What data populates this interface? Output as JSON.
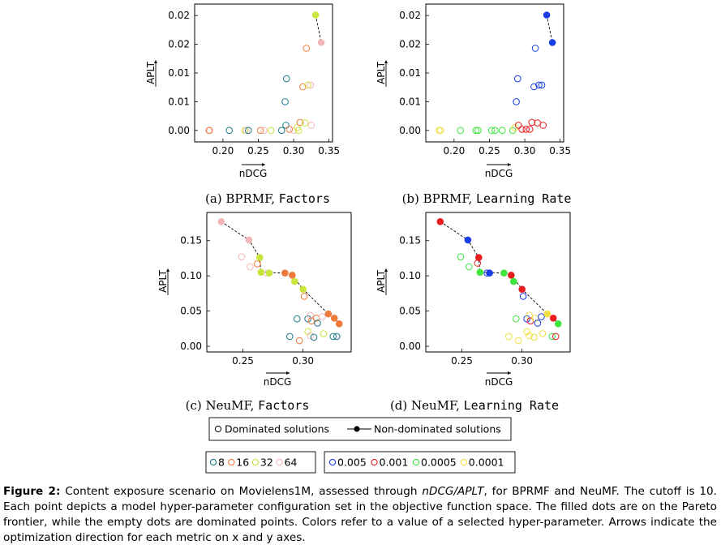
{
  "figure": {
    "label": "Figure 2:",
    "caption_parts": [
      "Content exposure scenario on Movielens1M, assessed through ",
      "nDCG/APLT",
      ", for BPRMF and NeuMF. The cutoff is 10. Each point depicts a model hyper-parameter configuration set in the objective function space. The filled dots are on the Pareto frontier, while the empty dots are dominated points. Colors refer to a value of a selected hyper-parameter. Arrows indicate the optimization direction for each metric on x and y axes."
    ]
  },
  "legends": {
    "dominance": [
      "Dominated solutions",
      "Non-dominated solutions"
    ],
    "factors": [
      {
        "label": "8",
        "color": "#1f7a8c"
      },
      {
        "label": "16",
        "color": "#f07a3a"
      },
      {
        "label": "32",
        "color": "#c8e63c"
      },
      {
        "label": "64",
        "color": "#f4b8b8"
      }
    ],
    "learning_rate": [
      {
        "label": "0.005",
        "color": "#1a3ee6"
      },
      {
        "label": "0.001",
        "color": "#e81e1e"
      },
      {
        "label": "0.0005",
        "color": "#3ee63e"
      },
      {
        "label": "0.0001",
        "color": "#f0e040"
      }
    ]
  },
  "chart_data": [
    {
      "type": "scatter",
      "subcaption_prefix": "(a) BPRMF, ",
      "subcaption_param": "Factors",
      "xlabel": "nDCG",
      "ylabel": "APLT",
      "xlim": [
        0.16,
        0.355
      ],
      "ylim": [
        -0.002,
        0.022
      ],
      "xticks": [
        0.2,
        0.25,
        0.3,
        0.35
      ],
      "xticklabels": [
        "0.20",
        "0.25",
        "0.30",
        "0.35"
      ],
      "yticks": [
        0,
        0.005,
        0.01,
        0.015,
        0.02
      ],
      "yticklabels": [
        "0.00",
        "0.01",
        "0.01",
        "0.02",
        "0.02"
      ],
      "grid": false,
      "frontier": [
        [
          0.331,
          0.0201
        ],
        [
          0.339,
          0.0153
        ]
      ],
      "points": [
        {
          "x": 0.18,
          "y": 0.0,
          "c": "#f4b8b8",
          "f": 0
        },
        {
          "x": 0.181,
          "y": 0.0,
          "c": "#f07a3a",
          "f": 0
        },
        {
          "x": 0.209,
          "y": 0.0,
          "c": "#1f7a8c",
          "f": 0
        },
        {
          "x": 0.231,
          "y": 0.0,
          "c": "#c8e63c",
          "f": 0
        },
        {
          "x": 0.233,
          "y": 0.0,
          "c": "#f4b8b8",
          "f": 0
        },
        {
          "x": 0.236,
          "y": 0.0,
          "c": "#1f7a8c",
          "f": 0
        },
        {
          "x": 0.253,
          "y": 0.0,
          "c": "#f07a3a",
          "f": 0
        },
        {
          "x": 0.258,
          "y": 0.0,
          "c": "#f4b8b8",
          "f": 0
        },
        {
          "x": 0.268,
          "y": 0.0,
          "c": "#c8e63c",
          "f": 0
        },
        {
          "x": 0.283,
          "y": 0.0,
          "c": "#1f7a8c",
          "f": 0
        },
        {
          "x": 0.289,
          "y": 0.0009,
          "c": "#1f7a8c",
          "f": 0
        },
        {
          "x": 0.294,
          "y": 0.0002,
          "c": "#f07a3a",
          "f": 0
        },
        {
          "x": 0.3,
          "y": 0.0,
          "c": "#f4b8b8",
          "f": 0
        },
        {
          "x": 0.305,
          "y": 0.0005,
          "c": "#c8e63c",
          "f": 0
        },
        {
          "x": 0.307,
          "y": 0.0,
          "c": "#c8e63c",
          "f": 0
        },
        {
          "x": 0.309,
          "y": 0.0014,
          "c": "#f07a3a",
          "f": 0
        },
        {
          "x": 0.316,
          "y": 0.0013,
          "c": "#c8e63c",
          "f": 0
        },
        {
          "x": 0.325,
          "y": 0.0009,
          "c": "#f4b8b8",
          "f": 0
        },
        {
          "x": 0.288,
          "y": 0.005,
          "c": "#1f7a8c",
          "f": 0
        },
        {
          "x": 0.29,
          "y": 0.009,
          "c": "#1f7a8c",
          "f": 0
        },
        {
          "x": 0.313,
          "y": 0.0076,
          "c": "#f07a3a",
          "f": 0
        },
        {
          "x": 0.32,
          "y": 0.0079,
          "c": "#c8e63c",
          "f": 0
        },
        {
          "x": 0.324,
          "y": 0.0079,
          "c": "#f4b8b8",
          "f": 0
        },
        {
          "x": 0.318,
          "y": 0.0143,
          "c": "#f07a3a",
          "f": 0
        },
        {
          "x": 0.331,
          "y": 0.0201,
          "c": "#c8e63c",
          "f": 1
        },
        {
          "x": 0.339,
          "y": 0.0153,
          "c": "#f4b8b8",
          "f": 1
        }
      ]
    },
    {
      "type": "scatter",
      "subcaption_prefix": "(b) BPRMF, ",
      "subcaption_param": "Learning Rate",
      "xlabel": "nDCG",
      "ylabel": "APLT",
      "xlim": [
        0.16,
        0.355
      ],
      "ylim": [
        -0.002,
        0.022
      ],
      "xticks": [
        0.2,
        0.25,
        0.3,
        0.35
      ],
      "xticklabels": [
        "0.20",
        "0.25",
        "0.30",
        "0.35"
      ],
      "yticks": [
        0,
        0.005,
        0.01,
        0.015,
        0.02
      ],
      "yticklabels": [
        "0.00",
        "0.01",
        "0.01",
        "0.02",
        "0.02"
      ],
      "grid": false,
      "frontier": [
        [
          0.331,
          0.0201
        ],
        [
          0.339,
          0.0153
        ]
      ],
      "points": [
        {
          "x": 0.179,
          "y": 0.0,
          "c": "#f0e040",
          "f": 0
        },
        {
          "x": 0.181,
          "y": 0.0,
          "c": "#f0e040",
          "f": 0
        },
        {
          "x": 0.209,
          "y": 0.0,
          "c": "#3ee63e",
          "f": 0
        },
        {
          "x": 0.231,
          "y": 0.0,
          "c": "#3ee63e",
          "f": 0
        },
        {
          "x": 0.234,
          "y": 0.0,
          "c": "#3ee63e",
          "f": 0
        },
        {
          "x": 0.253,
          "y": 0.0,
          "c": "#3ee63e",
          "f": 0
        },
        {
          "x": 0.258,
          "y": 0.0,
          "c": "#3ee63e",
          "f": 0
        },
        {
          "x": 0.268,
          "y": 0.0,
          "c": "#3ee63e",
          "f": 0
        },
        {
          "x": 0.283,
          "y": 0.0,
          "c": "#3ee63e",
          "f": 0
        },
        {
          "x": 0.286,
          "y": 0.0005,
          "c": "#f0e040",
          "f": 0
        },
        {
          "x": 0.291,
          "y": 0.0009,
          "c": "#e81e1e",
          "f": 0
        },
        {
          "x": 0.296,
          "y": 0.0002,
          "c": "#e81e1e",
          "f": 0
        },
        {
          "x": 0.302,
          "y": 0.0002,
          "c": "#e81e1e",
          "f": 0
        },
        {
          "x": 0.307,
          "y": 0.0002,
          "c": "#e81e1e",
          "f": 0
        },
        {
          "x": 0.31,
          "y": 0.0014,
          "c": "#e81e1e",
          "f": 0
        },
        {
          "x": 0.318,
          "y": 0.0013,
          "c": "#e81e1e",
          "f": 0
        },
        {
          "x": 0.326,
          "y": 0.0009,
          "c": "#e81e1e",
          "f": 0
        },
        {
          "x": 0.288,
          "y": 0.005,
          "c": "#1a3ee6",
          "f": 0
        },
        {
          "x": 0.29,
          "y": 0.009,
          "c": "#1a3ee6",
          "f": 0
        },
        {
          "x": 0.313,
          "y": 0.0076,
          "c": "#1a3ee6",
          "f": 0
        },
        {
          "x": 0.32,
          "y": 0.0079,
          "c": "#1a3ee6",
          "f": 0
        },
        {
          "x": 0.324,
          "y": 0.0079,
          "c": "#1a3ee6",
          "f": 0
        },
        {
          "x": 0.315,
          "y": 0.0143,
          "c": "#1a3ee6",
          "f": 0
        },
        {
          "x": 0.331,
          "y": 0.0201,
          "c": "#1a3ee6",
          "f": 1
        },
        {
          "x": 0.339,
          "y": 0.0153,
          "c": "#1a3ee6",
          "f": 1
        }
      ]
    },
    {
      "type": "scatter",
      "subcaption_prefix": "(c) NeuMF, ",
      "subcaption_param": "Factors",
      "xlabel": "nDCG",
      "ylabel": "APLT",
      "xlim": [
        0.22,
        0.34
      ],
      "ylim": [
        -0.008,
        0.19
      ],
      "xticks": [
        0.25,
        0.3
      ],
      "xticklabels": [
        "0.25",
        "0.30"
      ],
      "yticks": [
        0,
        0.05,
        0.1,
        0.15
      ],
      "yticklabels": [
        "0.00",
        "0.05",
        "0.10",
        "0.15"
      ],
      "grid": false,
      "frontier": [
        [
          0.232,
          0.177
        ],
        [
          0.255,
          0.151
        ],
        [
          0.264,
          0.126
        ],
        [
          0.265,
          0.105
        ],
        [
          0.285,
          0.104
        ],
        [
          0.291,
          0.101
        ],
        [
          0.3,
          0.081
        ],
        [
          0.321,
          0.046
        ],
        [
          0.326,
          0.04
        ],
        [
          0.33,
          0.032
        ]
      ],
      "points": [
        {
          "x": 0.232,
          "y": 0.177,
          "c": "#f4b8b8",
          "f": 1
        },
        {
          "x": 0.255,
          "y": 0.151,
          "c": "#f4b8b8",
          "f": 1
        },
        {
          "x": 0.264,
          "y": 0.126,
          "c": "#c8e63c",
          "f": 1
        },
        {
          "x": 0.265,
          "y": 0.105,
          "c": "#c8e63c",
          "f": 1
        },
        {
          "x": 0.272,
          "y": 0.104,
          "c": "#c8e63c",
          "f": 1
        },
        {
          "x": 0.285,
          "y": 0.104,
          "c": "#f07a3a",
          "f": 1
        },
        {
          "x": 0.291,
          "y": 0.101,
          "c": "#f07a3a",
          "f": 1
        },
        {
          "x": 0.293,
          "y": 0.092,
          "c": "#c8e63c",
          "f": 1
        },
        {
          "x": 0.3,
          "y": 0.081,
          "c": "#c8e63c",
          "f": 1
        },
        {
          "x": 0.321,
          "y": 0.046,
          "c": "#f07a3a",
          "f": 1
        },
        {
          "x": 0.326,
          "y": 0.04,
          "c": "#f07a3a",
          "f": 1
        },
        {
          "x": 0.33,
          "y": 0.032,
          "c": "#f07a3a",
          "f": 1
        },
        {
          "x": 0.249,
          "y": 0.127,
          "c": "#f4b8b8",
          "f": 0
        },
        {
          "x": 0.256,
          "y": 0.113,
          "c": "#f4b8b8",
          "f": 0
        },
        {
          "x": 0.262,
          "y": 0.117,
          "c": "#f07a3a",
          "f": 0
        },
        {
          "x": 0.27,
          "y": 0.104,
          "c": "#f4b8b8",
          "f": 0
        },
        {
          "x": 0.301,
          "y": 0.071,
          "c": "#f07a3a",
          "f": 0
        },
        {
          "x": 0.295,
          "y": 0.039,
          "c": "#1f7a8c",
          "f": 0
        },
        {
          "x": 0.304,
          "y": 0.039,
          "c": "#1f7a8c",
          "f": 0
        },
        {
          "x": 0.306,
          "y": 0.044,
          "c": "#f4b8b8",
          "f": 0
        },
        {
          "x": 0.307,
          "y": 0.036,
          "c": "#f07a3a",
          "f": 0
        },
        {
          "x": 0.311,
          "y": 0.04,
          "c": "#f07a3a",
          "f": 0
        },
        {
          "x": 0.312,
          "y": 0.033,
          "c": "#1f7a8c",
          "f": 0
        },
        {
          "x": 0.316,
          "y": 0.042,
          "c": "#f4b8b8",
          "f": 0
        },
        {
          "x": 0.289,
          "y": 0.014,
          "c": "#1f7a8c",
          "f": 0
        },
        {
          "x": 0.297,
          "y": 0.008,
          "c": "#f07a3a",
          "f": 0
        },
        {
          "x": 0.304,
          "y": 0.021,
          "c": "#c8e63c",
          "f": 0
        },
        {
          "x": 0.306,
          "y": 0.015,
          "c": "#f4b8b8",
          "f": 0
        },
        {
          "x": 0.309,
          "y": 0.013,
          "c": "#1f7a8c",
          "f": 0
        },
        {
          "x": 0.317,
          "y": 0.018,
          "c": "#c8e63c",
          "f": 0
        },
        {
          "x": 0.325,
          "y": 0.014,
          "c": "#1f7a8c",
          "f": 0
        },
        {
          "x": 0.328,
          "y": 0.014,
          "c": "#1f7a8c",
          "f": 0
        }
      ]
    },
    {
      "type": "scatter",
      "subcaption_prefix": "(d) NeuMF, ",
      "subcaption_param": "Learning Rate",
      "xlabel": "nDCG",
      "ylabel": "APLT",
      "xlim": [
        0.22,
        0.34
      ],
      "ylim": [
        -0.008,
        0.19
      ],
      "xticks": [
        0.25,
        0.3
      ],
      "xticklabels": [
        "0.25",
        "0.30"
      ],
      "yticks": [
        0,
        0.05,
        0.1,
        0.15
      ],
      "yticklabels": [
        "0.00",
        "0.05",
        "0.10",
        "0.15"
      ],
      "grid": false,
      "frontier": [
        [
          0.232,
          0.177
        ],
        [
          0.255,
          0.151
        ],
        [
          0.264,
          0.126
        ],
        [
          0.265,
          0.105
        ],
        [
          0.285,
          0.104
        ],
        [
          0.291,
          0.101
        ],
        [
          0.3,
          0.081
        ],
        [
          0.321,
          0.046
        ],
        [
          0.326,
          0.04
        ],
        [
          0.33,
          0.032
        ]
      ],
      "points": [
        {
          "x": 0.232,
          "y": 0.177,
          "c": "#e81e1e",
          "f": 1
        },
        {
          "x": 0.255,
          "y": 0.151,
          "c": "#1a3ee6",
          "f": 1
        },
        {
          "x": 0.264,
          "y": 0.126,
          "c": "#e81e1e",
          "f": 1
        },
        {
          "x": 0.265,
          "y": 0.105,
          "c": "#3ee63e",
          "f": 1
        },
        {
          "x": 0.273,
          "y": 0.104,
          "c": "#1a3ee6",
          "f": 1
        },
        {
          "x": 0.285,
          "y": 0.104,
          "c": "#3ee63e",
          "f": 1
        },
        {
          "x": 0.291,
          "y": 0.101,
          "c": "#e81e1e",
          "f": 1
        },
        {
          "x": 0.293,
          "y": 0.092,
          "c": "#3ee63e",
          "f": 1
        },
        {
          "x": 0.3,
          "y": 0.081,
          "c": "#e81e1e",
          "f": 1
        },
        {
          "x": 0.321,
          "y": 0.046,
          "c": "#f0e040",
          "f": 1
        },
        {
          "x": 0.326,
          "y": 0.04,
          "c": "#e81e1e",
          "f": 1
        },
        {
          "x": 0.33,
          "y": 0.032,
          "c": "#3ee63e",
          "f": 1
        },
        {
          "x": 0.249,
          "y": 0.127,
          "c": "#3ee63e",
          "f": 0
        },
        {
          "x": 0.256,
          "y": 0.113,
          "c": "#3ee63e",
          "f": 0
        },
        {
          "x": 0.263,
          "y": 0.118,
          "c": "#e81e1e",
          "f": 0
        },
        {
          "x": 0.271,
          "y": 0.104,
          "c": "#1a3ee6",
          "f": 0
        },
        {
          "x": 0.301,
          "y": 0.071,
          "c": "#1a3ee6",
          "f": 0
        },
        {
          "x": 0.295,
          "y": 0.039,
          "c": "#3ee63e",
          "f": 0
        },
        {
          "x": 0.304,
          "y": 0.039,
          "c": "#1a3ee6",
          "f": 0
        },
        {
          "x": 0.306,
          "y": 0.044,
          "c": "#f0e040",
          "f": 0
        },
        {
          "x": 0.307,
          "y": 0.036,
          "c": "#e81e1e",
          "f": 0
        },
        {
          "x": 0.311,
          "y": 0.04,
          "c": "#f0e040",
          "f": 0
        },
        {
          "x": 0.313,
          "y": 0.033,
          "c": "#1a3ee6",
          "f": 0
        },
        {
          "x": 0.316,
          "y": 0.042,
          "c": "#1a3ee6",
          "f": 0
        },
        {
          "x": 0.289,
          "y": 0.014,
          "c": "#f0e040",
          "f": 0
        },
        {
          "x": 0.297,
          "y": 0.008,
          "c": "#f0e040",
          "f": 0
        },
        {
          "x": 0.304,
          "y": 0.021,
          "c": "#f0e040",
          "f": 0
        },
        {
          "x": 0.306,
          "y": 0.015,
          "c": "#f0e040",
          "f": 0
        },
        {
          "x": 0.31,
          "y": 0.013,
          "c": "#f0e040",
          "f": 0
        },
        {
          "x": 0.317,
          "y": 0.018,
          "c": "#f0e040",
          "f": 0
        },
        {
          "x": 0.325,
          "y": 0.014,
          "c": "#3ee63e",
          "f": 0
        },
        {
          "x": 0.328,
          "y": 0.014,
          "c": "#e81e1e",
          "f": 0
        }
      ]
    }
  ]
}
